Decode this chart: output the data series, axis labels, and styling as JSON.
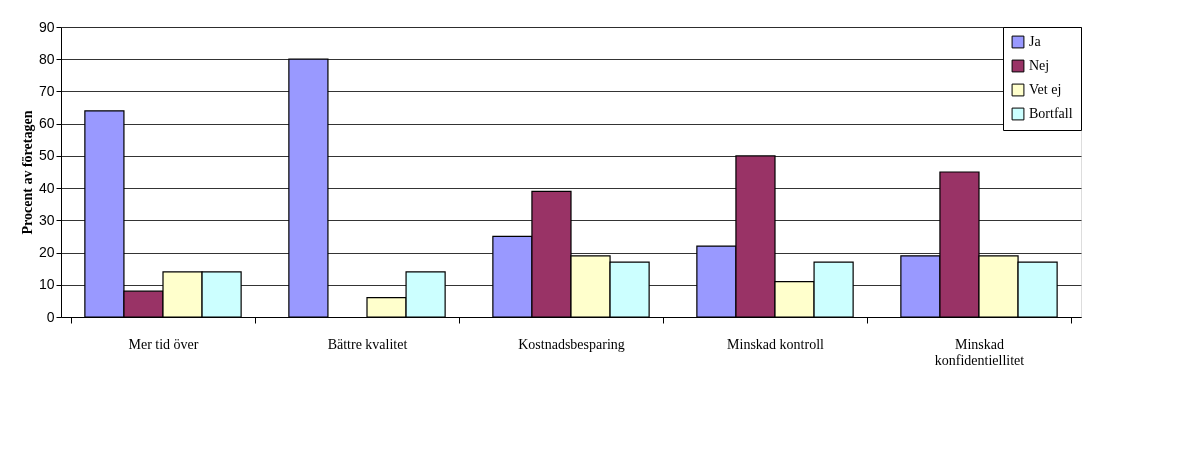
{
  "chart_data": {
    "type": "bar",
    "ylabel": "Procent av företagen",
    "categories": [
      "Mer tid över",
      "Bättre kvalitet",
      "Kostnadsbesparing",
      "Minskad kontroll",
      "Minskad konfidentiellitet"
    ],
    "series": [
      {
        "name": "Ja",
        "color": "#9999ff",
        "values": [
          64,
          80,
          25,
          22,
          19
        ]
      },
      {
        "name": "Nej",
        "color": "#993366",
        "values": [
          8,
          null,
          39,
          50,
          45
        ]
      },
      {
        "name": "Vet ej",
        "color": "#ffffcc",
        "values": [
          14,
          6,
          19,
          11,
          19
        ]
      },
      {
        "name": "Bortfall",
        "color": "#ccffff",
        "values": [
          14,
          14,
          17,
          17,
          17
        ]
      }
    ],
    "ylim": [
      0,
      90
    ],
    "yticks": [
      0,
      10,
      20,
      30,
      40,
      50,
      60,
      70,
      80,
      90
    ],
    "grid": "y",
    "legend": "top right"
  }
}
